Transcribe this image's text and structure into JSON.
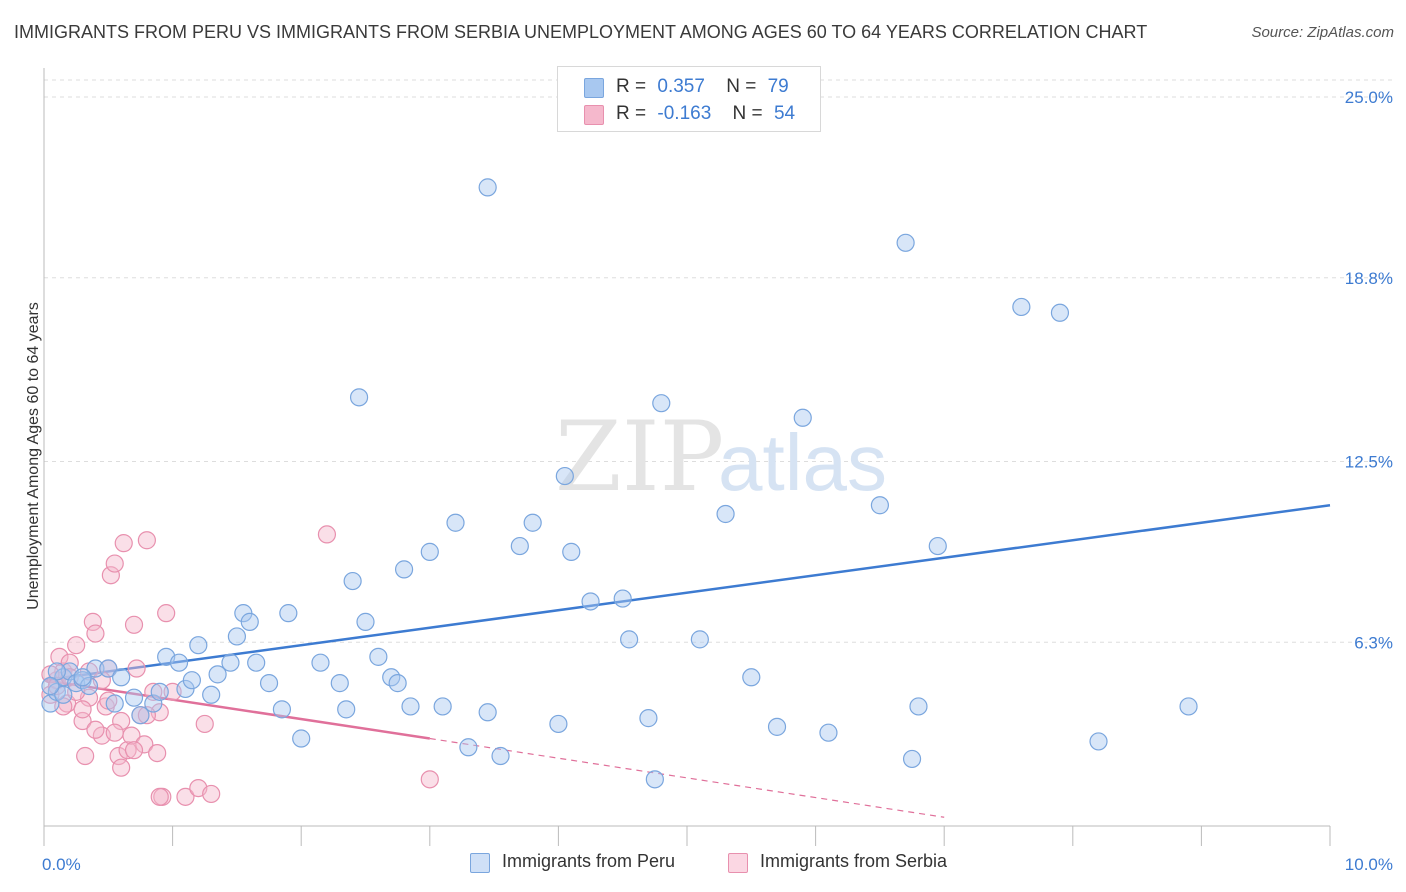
{
  "header": {
    "title": "IMMIGRANTS FROM PERU VS IMMIGRANTS FROM SERBIA UNEMPLOYMENT AMONG AGES 60 TO 64 YEARS CORRELATION CHART",
    "source": "Source: ZipAtlas.com"
  },
  "watermark": {
    "zip": "ZIP",
    "atlas": "atlas"
  },
  "legend": {
    "peru": {
      "r_label": "R =",
      "r_value": "0.357",
      "n_label": "N =",
      "n_value": "79",
      "color": "#a8c8f0"
    },
    "serbia": {
      "r_label": "R =",
      "r_value": "-0.163",
      "n_label": "N =",
      "n_value": "54",
      "color": "#f5b8cc"
    }
  },
  "bottom_legend": {
    "peru_label": "Immigrants from Peru",
    "serbia_label": "Immigrants from Serbia"
  },
  "chart_data": {
    "type": "scatter",
    "title": "IMMIGRANTS FROM PERU VS IMMIGRANTS FROM SERBIA UNEMPLOYMENT AMONG AGES 60 TO 64 YEARS CORRELATION CHART",
    "xlabel": "",
    "ylabel": "Unemployment Among Ages 60 to 64 years",
    "xlim": [
      0,
      10
    ],
    "ylim": [
      0,
      25
    ],
    "x_tick_labels": [
      "0.0%",
      "10.0%"
    ],
    "y_ticks": [
      6.3,
      12.5,
      18.8,
      25.0
    ],
    "y_tick_labels": [
      "6.3%",
      "12.5%",
      "18.8%",
      "25.0%"
    ],
    "series": [
      {
        "name": "Immigrants from Peru",
        "color": "#3d7bd1",
        "fill": "#a8c8f0",
        "trend": {
          "x0": 0.0,
          "y0": 5.0,
          "x1": 10.0,
          "y1": 11.0
        },
        "points": [
          [
            0.05,
            4.2
          ],
          [
            0.1,
            4.6
          ],
          [
            0.15,
            5.1
          ],
          [
            0.2,
            5.3
          ],
          [
            0.25,
            4.9
          ],
          [
            0.3,
            5.0
          ],
          [
            0.35,
            4.8
          ],
          [
            0.4,
            5.4
          ],
          [
            0.5,
            5.4
          ],
          [
            0.55,
            4.2
          ],
          [
            0.6,
            5.1
          ],
          [
            0.7,
            4.4
          ],
          [
            0.75,
            3.8
          ],
          [
            0.85,
            4.2
          ],
          [
            0.9,
            4.6
          ],
          [
            0.95,
            5.8
          ],
          [
            1.05,
            5.6
          ],
          [
            1.1,
            4.7
          ],
          [
            1.15,
            5.0
          ],
          [
            1.2,
            6.2
          ],
          [
            1.3,
            4.5
          ],
          [
            1.35,
            5.2
          ],
          [
            1.45,
            5.6
          ],
          [
            1.5,
            6.5
          ],
          [
            1.55,
            7.3
          ],
          [
            1.6,
            7.0
          ],
          [
            1.65,
            5.6
          ],
          [
            1.75,
            4.9
          ],
          [
            1.85,
            4.0
          ],
          [
            1.9,
            7.3
          ],
          [
            2.0,
            3.0
          ],
          [
            2.15,
            5.6
          ],
          [
            2.3,
            4.9
          ],
          [
            2.35,
            4.0
          ],
          [
            2.4,
            8.4
          ],
          [
            2.5,
            7.0
          ],
          [
            2.6,
            5.8
          ],
          [
            2.7,
            5.1
          ],
          [
            2.75,
            4.9
          ],
          [
            2.8,
            8.8
          ],
          [
            2.85,
            4.1
          ],
          [
            3.0,
            9.4
          ],
          [
            3.1,
            4.1
          ],
          [
            3.2,
            10.4
          ],
          [
            3.3,
            2.7
          ],
          [
            3.45,
            3.9
          ],
          [
            3.55,
            2.4
          ],
          [
            3.7,
            9.6
          ],
          [
            3.8,
            10.4
          ],
          [
            4.0,
            3.5
          ],
          [
            4.05,
            12.0
          ],
          [
            4.1,
            9.4
          ],
          [
            4.25,
            7.7
          ],
          [
            4.5,
            7.8
          ],
          [
            4.55,
            6.4
          ],
          [
            4.7,
            3.7
          ],
          [
            4.75,
            1.6
          ],
          [
            4.8,
            14.5
          ],
          [
            5.1,
            6.4
          ],
          [
            5.3,
            10.7
          ],
          [
            5.5,
            5.1
          ],
          [
            5.7,
            3.4
          ],
          [
            5.9,
            14.0
          ],
          [
            6.1,
            3.2
          ],
          [
            6.5,
            11.0
          ],
          [
            6.7,
            20.0
          ],
          [
            6.75,
            2.3
          ],
          [
            6.8,
            4.1
          ],
          [
            6.95,
            9.6
          ],
          [
            7.6,
            17.8
          ],
          [
            7.9,
            17.6
          ],
          [
            8.2,
            2.9
          ],
          [
            8.9,
            4.1
          ],
          [
            3.45,
            21.9
          ],
          [
            2.45,
            14.7
          ],
          [
            0.15,
            4.5
          ],
          [
            0.1,
            5.3
          ],
          [
            0.3,
            5.1
          ],
          [
            0.05,
            4.8
          ]
        ]
      },
      {
        "name": "Immigrants from Serbia",
        "color": "#e0709a",
        "fill": "#f5b8cc",
        "trend": {
          "x0": 0.0,
          "y0": 5.0,
          "x1": 3.0,
          "y1": 3.0
        },
        "trend_dashed": {
          "x0": 3.0,
          "y0": 3.0,
          "x1": 7.0,
          "y1": 0.3
        },
        "points": [
          [
            0.05,
            4.5
          ],
          [
            0.1,
            5.0
          ],
          [
            0.12,
            5.8
          ],
          [
            0.15,
            5.3
          ],
          [
            0.18,
            4.2
          ],
          [
            0.2,
            5.6
          ],
          [
            0.25,
            6.2
          ],
          [
            0.3,
            3.6
          ],
          [
            0.32,
            2.4
          ],
          [
            0.35,
            4.4
          ],
          [
            0.38,
            7.0
          ],
          [
            0.4,
            6.6
          ],
          [
            0.45,
            3.1
          ],
          [
            0.48,
            4.1
          ],
          [
            0.5,
            5.4
          ],
          [
            0.52,
            8.6
          ],
          [
            0.55,
            9.0
          ],
          [
            0.58,
            2.4
          ],
          [
            0.6,
            3.6
          ],
          [
            0.62,
            9.7
          ],
          [
            0.65,
            2.6
          ],
          [
            0.68,
            3.1
          ],
          [
            0.7,
            6.9
          ],
          [
            0.72,
            5.4
          ],
          [
            0.75,
            3.8
          ],
          [
            0.78,
            2.8
          ],
          [
            0.8,
            9.8
          ],
          [
            0.85,
            4.6
          ],
          [
            0.88,
            2.5
          ],
          [
            0.9,
            3.9
          ],
          [
            0.92,
            1.0
          ],
          [
            0.95,
            7.3
          ],
          [
            1.0,
            4.6
          ],
          [
            1.1,
            1.0
          ],
          [
            1.2,
            1.3
          ],
          [
            1.25,
            3.5
          ],
          [
            1.3,
            1.1
          ],
          [
            2.2,
            10.0
          ],
          [
            3.0,
            1.6
          ],
          [
            0.05,
            5.2
          ],
          [
            0.1,
            4.8
          ],
          [
            0.15,
            4.1
          ],
          [
            0.2,
            5.1
          ],
          [
            0.25,
            4.6
          ],
          [
            0.3,
            4.0
          ],
          [
            0.35,
            5.3
          ],
          [
            0.4,
            3.3
          ],
          [
            0.45,
            5.0
          ],
          [
            0.5,
            4.3
          ],
          [
            0.55,
            3.2
          ],
          [
            0.6,
            2.0
          ],
          [
            0.7,
            2.6
          ],
          [
            0.8,
            3.8
          ],
          [
            0.9,
            1.0
          ]
        ]
      }
    ]
  }
}
